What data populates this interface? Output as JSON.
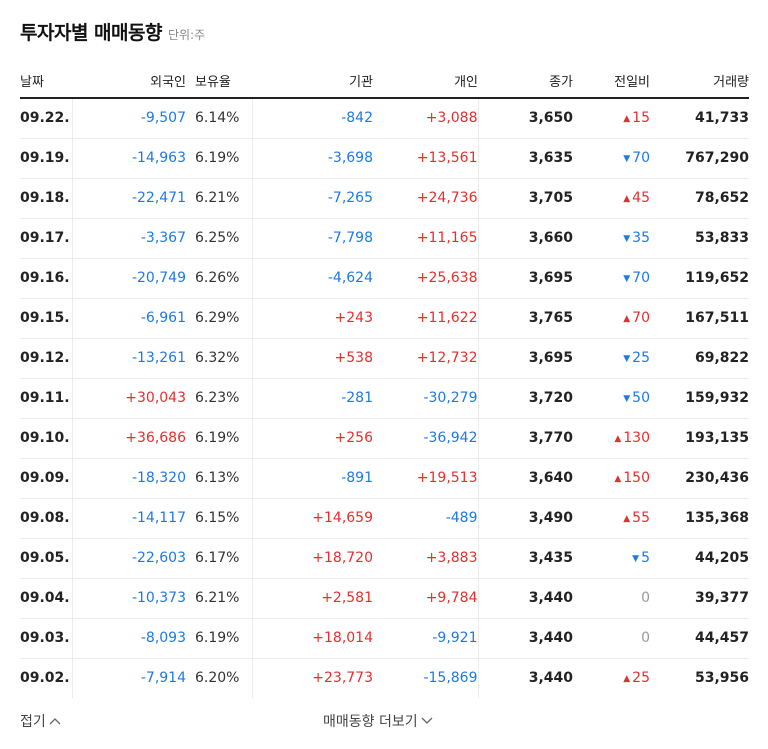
{
  "header": {
    "title": "투자자별 매매동향",
    "unit": "단위:주"
  },
  "columns": {
    "date": "날짜",
    "foreign": "외국인",
    "ratio": "보유율",
    "institution": "기관",
    "individual": "개인",
    "close": "종가",
    "change": "전일비",
    "volume": "거래량"
  },
  "rows": [
    {
      "date": "09.22.",
      "foreign": "-9,507",
      "ratio": "6.14%",
      "institution": "-842",
      "individual": "+3,088",
      "close": "3,650",
      "dir": "up",
      "change": "15",
      "volume": "41,733"
    },
    {
      "date": "09.19.",
      "foreign": "-14,963",
      "ratio": "6.19%",
      "institution": "-3,698",
      "individual": "+13,561",
      "close": "3,635",
      "dir": "down",
      "change": "70",
      "volume": "767,290"
    },
    {
      "date": "09.18.",
      "foreign": "-22,471",
      "ratio": "6.21%",
      "institution": "-7,265",
      "individual": "+24,736",
      "close": "3,705",
      "dir": "up",
      "change": "45",
      "volume": "78,652"
    },
    {
      "date": "09.17.",
      "foreign": "-3,367",
      "ratio": "6.25%",
      "institution": "-7,798",
      "individual": "+11,165",
      "close": "3,660",
      "dir": "down",
      "change": "35",
      "volume": "53,833"
    },
    {
      "date": "09.16.",
      "foreign": "-20,749",
      "ratio": "6.26%",
      "institution": "-4,624",
      "individual": "+25,638",
      "close": "3,695",
      "dir": "down",
      "change": "70",
      "volume": "119,652"
    },
    {
      "date": "09.15.",
      "foreign": "-6,961",
      "ratio": "6.29%",
      "institution": "+243",
      "individual": "+11,622",
      "close": "3,765",
      "dir": "up",
      "change": "70",
      "volume": "167,511"
    },
    {
      "date": "09.12.",
      "foreign": "-13,261",
      "ratio": "6.32%",
      "institution": "+538",
      "individual": "+12,732",
      "close": "3,695",
      "dir": "down",
      "change": "25",
      "volume": "69,822"
    },
    {
      "date": "09.11.",
      "foreign": "+30,043",
      "ratio": "6.23%",
      "institution": "-281",
      "individual": "-30,279",
      "close": "3,720",
      "dir": "down",
      "change": "50",
      "volume": "159,932"
    },
    {
      "date": "09.10.",
      "foreign": "+36,686",
      "ratio": "6.19%",
      "institution": "+256",
      "individual": "-36,942",
      "close": "3,770",
      "dir": "up",
      "change": "130",
      "volume": "193,135"
    },
    {
      "date": "09.09.",
      "foreign": "-18,320",
      "ratio": "6.13%",
      "institution": "-891",
      "individual": "+19,513",
      "close": "3,640",
      "dir": "up",
      "change": "150",
      "volume": "230,436"
    },
    {
      "date": "09.08.",
      "foreign": "-14,117",
      "ratio": "6.15%",
      "institution": "+14,659",
      "individual": "-489",
      "close": "3,490",
      "dir": "up",
      "change": "55",
      "volume": "135,368"
    },
    {
      "date": "09.05.",
      "foreign": "-22,603",
      "ratio": "6.17%",
      "institution": "+18,720",
      "individual": "+3,883",
      "close": "3,435",
      "dir": "down",
      "change": "5",
      "volume": "44,205"
    },
    {
      "date": "09.04.",
      "foreign": "-10,373",
      "ratio": "6.21%",
      "institution": "+2,581",
      "individual": "+9,784",
      "close": "3,440",
      "dir": "flat",
      "change": "0",
      "volume": "39,377"
    },
    {
      "date": "09.03.",
      "foreign": "-8,093",
      "ratio": "6.19%",
      "institution": "+18,014",
      "individual": "-9,921",
      "close": "3,440",
      "dir": "flat",
      "change": "0",
      "volume": "44,457"
    },
    {
      "date": "09.02.",
      "foreign": "-7,914",
      "ratio": "6.20%",
      "institution": "+23,773",
      "individual": "-15,869",
      "close": "3,440",
      "dir": "up",
      "change": "25",
      "volume": "53,956"
    }
  ],
  "icons": {
    "up": "triangle-up-icon",
    "down": "triangle-down-icon",
    "collapse": "chevron-up-icon",
    "expand": "chevron-down-icon"
  },
  "colors": {
    "up": "#e03131",
    "down": "#1f7ae0",
    "flat": "#999999"
  },
  "footer": {
    "collapse_label": "접기",
    "more_label": "매매동향 더보기"
  }
}
